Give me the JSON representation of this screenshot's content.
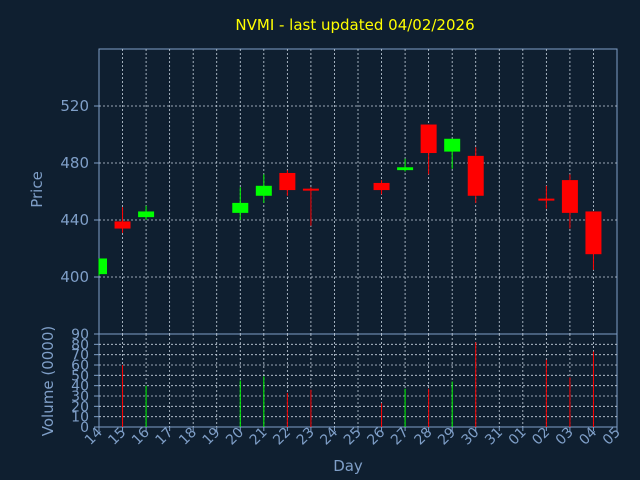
{
  "chart_data": [
    {
      "type": "candlestick",
      "title": "NVMI - last updated 04/02/2026",
      "ylabel": "Price",
      "ylim": [
        360,
        560
      ],
      "yticks": [
        400,
        440,
        480,
        520
      ],
      "grid": true,
      "up_color": "#00ff00",
      "down_color": "#ff0000",
      "x": [
        "14",
        "15",
        "16",
        "17",
        "18",
        "19",
        "20",
        "21",
        "22",
        "23",
        "24",
        "25",
        "26",
        "27",
        "28",
        "29",
        "30",
        "31",
        "01",
        "02",
        "03",
        "04",
        "05"
      ],
      "candles": [
        {
          "x": "14",
          "open": 402,
          "high": 413,
          "low": 401,
          "close": 413
        },
        {
          "x": "15",
          "open": 439,
          "high": 449,
          "low": 431,
          "close": 434
        },
        {
          "x": "16",
          "open": 442,
          "high": 450,
          "low": 440,
          "close": 446
        },
        {
          "x": "20",
          "open": 445,
          "high": 463,
          "low": 440,
          "close": 452
        },
        {
          "x": "21",
          "open": 457,
          "high": 472,
          "low": 452,
          "close": 464
        },
        {
          "x": "22",
          "open": 473,
          "high": 475,
          "low": 457,
          "close": 461
        },
        {
          "x": "23",
          "open": 462,
          "high": 463,
          "low": 436,
          "close": 461
        },
        {
          "x": "26",
          "open": 466,
          "high": 468,
          "low": 458,
          "close": 461
        },
        {
          "x": "27",
          "open": 475,
          "high": 483,
          "low": 474,
          "close": 477
        },
        {
          "x": "28",
          "open": 507,
          "high": 507,
          "low": 472,
          "close": 487
        },
        {
          "x": "29",
          "open": 488,
          "high": 496,
          "low": 476,
          "close": 497
        },
        {
          "x": "30",
          "open": 485,
          "high": 491,
          "low": 452,
          "close": 457
        },
        {
          "x": "02",
          "open": 455,
          "high": 464,
          "low": 448,
          "close": 454
        },
        {
          "x": "03",
          "open": 468,
          "high": 472,
          "low": 434,
          "close": 445
        },
        {
          "x": "04",
          "open": 446,
          "high": 446,
          "low": 405,
          "close": 416
        }
      ]
    },
    {
      "type": "bar",
      "xlabel": "Day",
      "ylabel": "Volume (0000)",
      "ylim": [
        0,
        90
      ],
      "yticks": [
        0,
        10,
        20,
        30,
        40,
        50,
        60,
        70,
        80,
        90
      ],
      "categories": [
        "14",
        "15",
        "16",
        "17",
        "18",
        "19",
        "20",
        "21",
        "22",
        "23",
        "24",
        "25",
        "26",
        "27",
        "28",
        "29",
        "30",
        "31",
        "01",
        "02",
        "03",
        "04",
        "05"
      ],
      "values": [
        0,
        60,
        40,
        0,
        0,
        0,
        45,
        49,
        33,
        36,
        0,
        0,
        23,
        37,
        37,
        44,
        82,
        0,
        0,
        65,
        48,
        73,
        0
      ],
      "colors": [
        "",
        "#ff0000",
        "#00ff00",
        "",
        "",
        "",
        "#00ff00",
        "#00ff00",
        "#ff0000",
        "#ff0000",
        "",
        "",
        "#ff0000",
        "#00ff00",
        "#ff0000",
        "#00ff00",
        "#ff0000",
        "",
        "",
        "#ff0000",
        "#ff0000",
        "#ff0000",
        ""
      ]
    }
  ]
}
